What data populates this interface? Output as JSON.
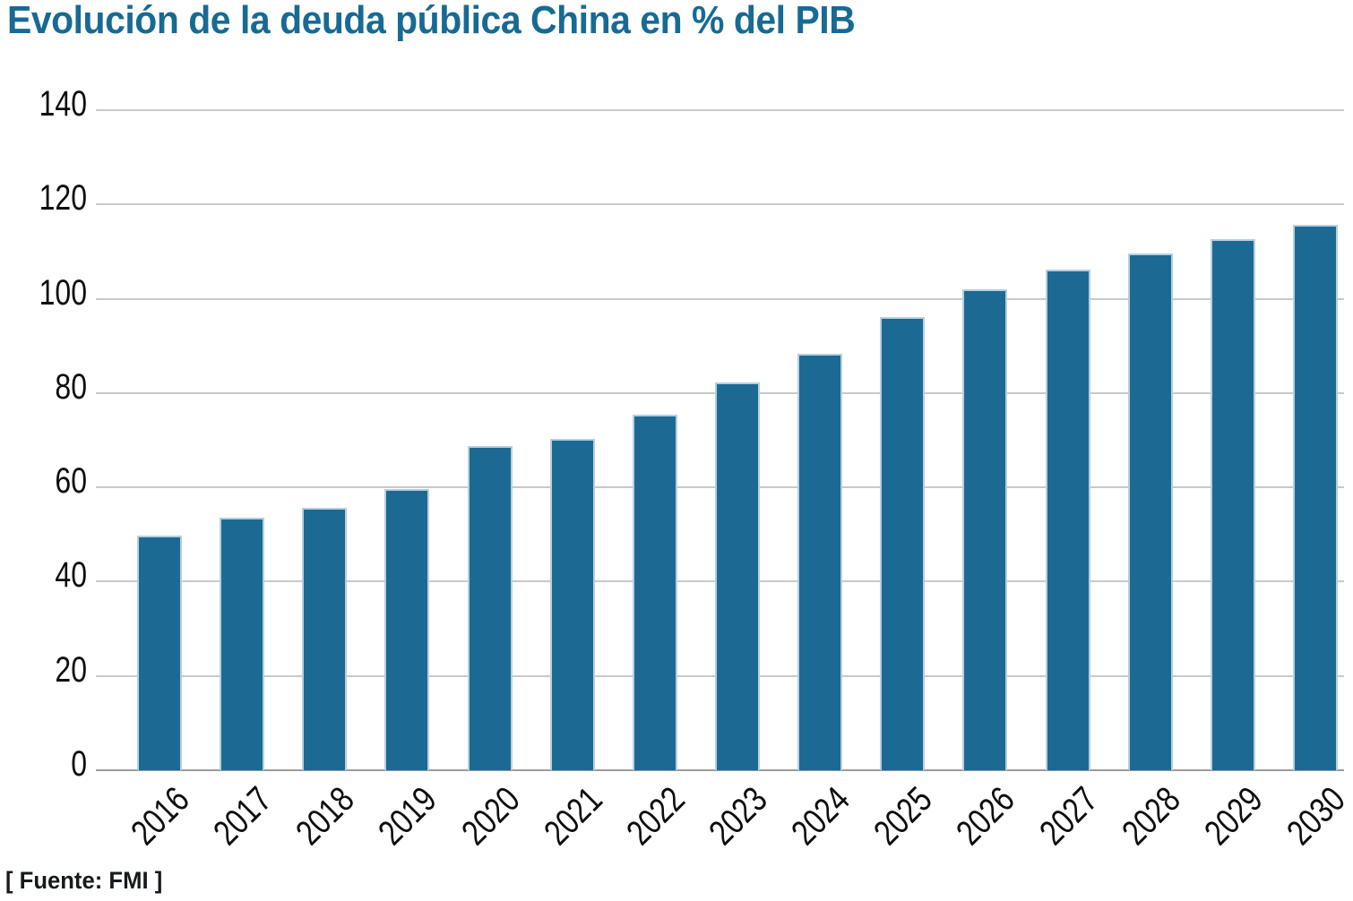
{
  "header": {
    "title": "Evolución de la deuda pública China en % del PIB"
  },
  "source": {
    "label": "[ Fuente: FMI ]"
  },
  "colors": {
    "title_text": "#176a94",
    "bar": "#1c6a93",
    "bar_stroke": "#b7cfdf",
    "grid": "#c9c9c9",
    "axis": "#9b9b9b",
    "tick_text": "#0d0d0d",
    "source_text": "#16191d"
  },
  "chart_data": {
    "type": "bar",
    "title": "Evolución de la deuda pública China en % del PIB",
    "source": "[ Fuente: FMI ]",
    "categories": [
      "2016",
      "2017",
      "2018",
      "2019",
      "2020",
      "2021",
      "2022",
      "2023",
      "2024",
      "2025",
      "2026",
      "2027",
      "2028",
      "2029",
      "2030"
    ],
    "values": [
      49.8,
      53.6,
      55.7,
      59.7,
      68.8,
      70.2,
      75.4,
      82.3,
      88.3,
      96.1,
      102.1,
      106.2,
      109.6,
      112.6,
      115.7
    ],
    "yticks": [
      0,
      20,
      40,
      60,
      80,
      100,
      120,
      140
    ],
    "ylim": [
      0,
      140
    ],
    "xlabel": "",
    "ylabel": "",
    "grid": true,
    "legend": false,
    "series_name": "Deuda pública (% del PIB)",
    "x_tick_rotation_deg": -45
  }
}
